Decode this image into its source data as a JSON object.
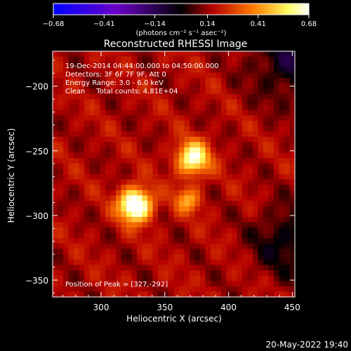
{
  "chart_data": {
    "type": "heatmap",
    "title": "Reconstructed RHESSI Image",
    "xlabel": "Heliocentric X (arcsec)",
    "ylabel": "Heliocentric Y (arcsec)",
    "xlim": [
      262,
      452
    ],
    "ylim": [
      -363,
      -173
    ],
    "x_ticks": [
      300,
      350,
      400,
      450
    ],
    "x_tick_labels": [
      "300",
      "350",
      "400",
      "450"
    ],
    "y_ticks": [
      -200,
      -250,
      -300,
      -350
    ],
    "y_tick_labels": [
      "−200",
      "−250",
      "−300",
      "−350"
    ],
    "colorbar": {
      "min": -0.68,
      "max": 0.68,
      "tick_values": [
        -0.68,
        -0.41,
        -0.14,
        0.14,
        0.41,
        0.68
      ],
      "tick_labels": [
        "−0.68",
        "−0.41",
        "−0.14",
        "0.14",
        "0.41",
        "0.68"
      ],
      "units_label": "(photons cm⁻² s⁻¹ asec⁻²)",
      "colors": [
        "#0000ff",
        "#6a00c8",
        "#000000",
        "#b40000",
        "#ff7800",
        "#ffff64",
        "#ffffff"
      ]
    },
    "sources": [
      {
        "x": 327,
        "y": -292,
        "peak": 0.68,
        "sigma": 9
      },
      {
        "x": 372,
        "y": -256,
        "peak": 0.52,
        "sigma": 9
      },
      {
        "x": 368,
        "y": -288,
        "peak": 0.28,
        "sigma": 7
      }
    ],
    "background_level": 0.16,
    "annotations": [
      "19-Dec-2014 04:44:00.000 to 04:50:00.000",
      "Detectors: 3F 6F 7F 9F, Att 0",
      "Energy Range: 3.0 - 6.0 keV",
      "Clean     Total counts: 4.81E+04"
    ],
    "peak_text": "Position of Peak = [327,-292]"
  },
  "footer": {
    "timestamp": "20-May-2022 19:40"
  }
}
